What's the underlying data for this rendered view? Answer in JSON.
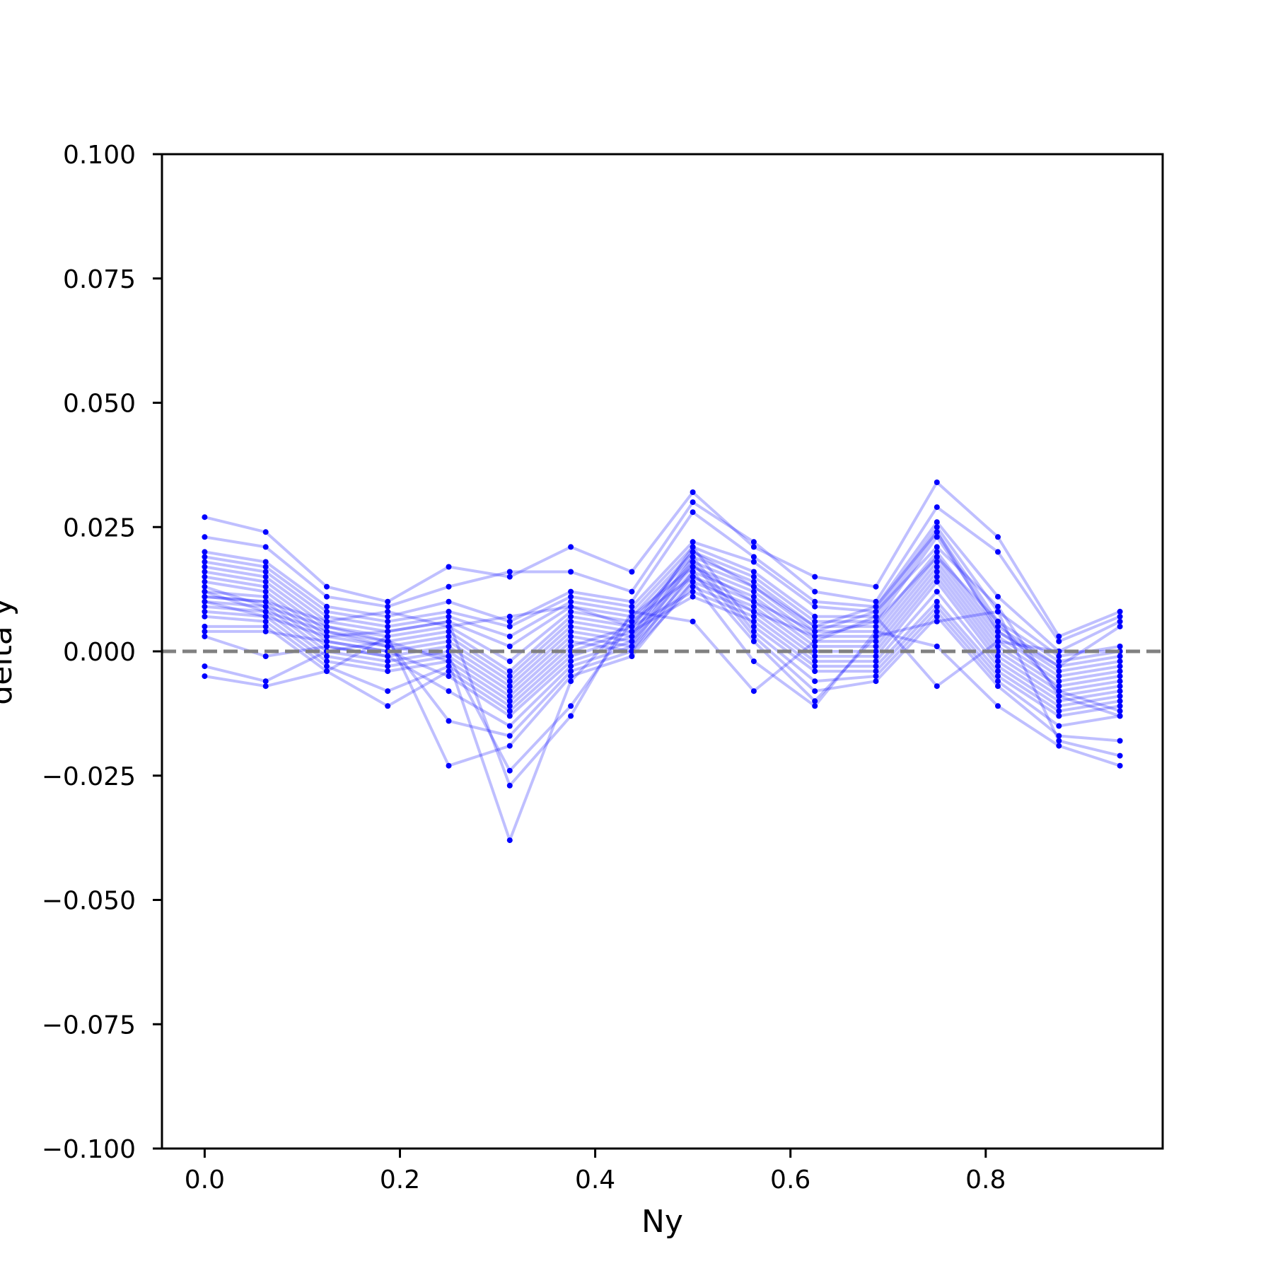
{
  "chart_data": {
    "type": "line",
    "title": "",
    "xlabel": "Ny",
    "ylabel": "delta y",
    "xlim": [
      -0.04375,
      0.98125
    ],
    "ylim": [
      -0.1,
      0.1
    ],
    "xticks": [
      0.0,
      0.2,
      0.4,
      0.6,
      0.8
    ],
    "xtick_labels": [
      "0.0",
      "0.2",
      "0.4",
      "0.6",
      "0.8"
    ],
    "yticks": [
      0.1,
      0.075,
      0.05,
      0.025,
      0.0,
      -0.025,
      -0.05,
      -0.075,
      -0.1
    ],
    "ytick_labels": [
      "0.100",
      "0.075",
      "0.050",
      "0.025",
      "0.000",
      "−0.025",
      "−0.050",
      "−0.075",
      "−0.100"
    ],
    "grid": false,
    "legend": null,
    "reference_line": {
      "y": 0.0,
      "style": "dashed",
      "color": "#808080"
    },
    "colors": {
      "series": "#0000ff",
      "line_alpha": 0.25
    },
    "x": [
      0.0,
      0.0625,
      0.125,
      0.1875,
      0.25,
      0.3125,
      0.375,
      0.4375,
      0.5,
      0.5625,
      0.625,
      0.6875,
      0.75,
      0.8125,
      0.875,
      0.9375
    ],
    "series": [
      {
        "values": [
          0.027,
          0.024,
          0.013,
          0.01,
          0.017,
          0.015,
          0.021,
          0.016,
          0.032,
          0.021,
          0.015,
          0.013,
          0.034,
          0.023,
          0.003,
          0.008
        ]
      },
      {
        "values": [
          0.023,
          0.021,
          0.011,
          0.009,
          0.013,
          0.016,
          0.016,
          0.012,
          0.03,
          0.022,
          0.012,
          0.01,
          0.029,
          0.02,
          0.002,
          0.007
        ]
      },
      {
        "values": [
          0.02,
          0.018,
          0.009,
          0.007,
          0.01,
          0.006,
          0.012,
          0.01,
          0.028,
          0.019,
          0.01,
          0.009,
          0.026,
          0.011,
          0.0,
          0.006
        ]
      },
      {
        "values": [
          0.019,
          0.017,
          0.008,
          0.006,
          0.008,
          0.005,
          0.011,
          0.009,
          0.022,
          0.018,
          0.009,
          0.008,
          0.025,
          0.008,
          -0.001,
          0.001
        ]
      },
      {
        "values": [
          0.018,
          0.016,
          0.007,
          0.005,
          0.007,
          0.003,
          0.01,
          0.008,
          0.021,
          0.016,
          0.007,
          0.007,
          0.024,
          0.006,
          -0.002,
          0.0
        ]
      },
      {
        "values": [
          0.017,
          0.015,
          0.006,
          0.004,
          0.006,
          0.001,
          0.009,
          0.007,
          0.02,
          0.015,
          0.006,
          0.006,
          0.023,
          0.005,
          -0.003,
          -0.001
        ]
      },
      {
        "values": [
          0.016,
          0.014,
          0.005,
          0.003,
          0.005,
          -0.002,
          0.008,
          0.006,
          0.019,
          0.014,
          0.005,
          0.005,
          0.02,
          0.004,
          -0.004,
          -0.002
        ]
      },
      {
        "values": [
          0.015,
          0.013,
          0.004,
          0.002,
          0.004,
          -0.004,
          0.007,
          0.005,
          0.018,
          0.013,
          0.004,
          0.004,
          0.019,
          0.003,
          -0.005,
          -0.003
        ]
      },
      {
        "values": [
          0.014,
          0.012,
          0.003,
          0.001,
          0.003,
          -0.005,
          0.006,
          0.004,
          0.017,
          0.012,
          0.003,
          0.003,
          0.018,
          0.002,
          -0.006,
          -0.004
        ]
      },
      {
        "values": [
          0.012,
          0.011,
          0.002,
          0.0,
          0.002,
          -0.006,
          0.005,
          0.003,
          0.016,
          0.011,
          0.002,
          0.002,
          0.017,
          0.001,
          -0.007,
          -0.005
        ]
      },
      {
        "values": [
          0.011,
          0.01,
          0.001,
          -0.001,
          0.001,
          -0.007,
          0.004,
          0.002,
          0.015,
          0.01,
          0.001,
          0.001,
          0.016,
          0.0,
          -0.008,
          -0.006
        ]
      },
      {
        "values": [
          0.01,
          0.009,
          0.0,
          -0.002,
          0.0,
          -0.008,
          0.003,
          0.001,
          0.014,
          0.009,
          0.0,
          0.0,
          0.015,
          -0.001,
          -0.009,
          -0.007
        ]
      },
      {
        "values": [
          0.009,
          0.008,
          -0.001,
          -0.003,
          -0.001,
          -0.009,
          0.002,
          0.0,
          0.013,
          0.008,
          -0.001,
          -0.001,
          0.014,
          -0.002,
          -0.01,
          -0.008
        ]
      },
      {
        "values": [
          0.008,
          0.007,
          -0.002,
          -0.004,
          -0.002,
          -0.01,
          0.001,
          0.005,
          0.012,
          0.007,
          -0.002,
          -0.002,
          0.012,
          -0.003,
          -0.011,
          -0.009
        ]
      },
      {
        "values": [
          0.007,
          0.006,
          -0.003,
          -0.008,
          -0.003,
          -0.011,
          0.0,
          0.004,
          0.011,
          0.006,
          -0.003,
          -0.003,
          0.01,
          -0.004,
          -0.012,
          -0.01
        ]
      },
      {
        "values": [
          0.005,
          0.005,
          -0.004,
          -0.011,
          -0.004,
          -0.012,
          -0.001,
          0.003,
          0.021,
          0.005,
          -0.004,
          -0.004,
          0.009,
          -0.005,
          -0.013,
          -0.011
        ]
      },
      {
        "values": [
          0.004,
          0.004,
          0.002,
          0.0,
          -0.005,
          -0.013,
          -0.002,
          0.002,
          0.019,
          0.004,
          -0.006,
          -0.005,
          0.008,
          -0.006,
          -0.015,
          -0.013
        ]
      },
      {
        "values": [
          0.003,
          -0.001,
          0.001,
          -0.001,
          -0.008,
          -0.015,
          -0.003,
          0.001,
          0.018,
          0.003,
          -0.008,
          -0.006,
          0.007,
          -0.007,
          -0.017,
          -0.018
        ]
      },
      {
        "values": [
          -0.003,
          -0.006,
          0.0,
          0.002,
          -0.014,
          -0.017,
          -0.004,
          0.0,
          0.016,
          0.002,
          -0.01,
          0.003,
          0.006,
          0.008,
          -0.018,
          -0.021
        ]
      },
      {
        "values": [
          -0.005,
          -0.007,
          -0.004,
          0.003,
          -0.023,
          -0.019,
          -0.005,
          -0.001,
          0.014,
          -0.002,
          -0.011,
          0.004,
          0.001,
          -0.011,
          -0.019,
          -0.023
        ]
      },
      {
        "values": [
          0.012,
          0.008,
          0.004,
          0.001,
          -0.001,
          -0.024,
          -0.011,
          0.006,
          0.015,
          0.008,
          0.003,
          0.006,
          0.019,
          0.006,
          -0.008,
          -0.012
        ]
      },
      {
        "values": [
          0.01,
          0.007,
          0.003,
          0.004,
          0.006,
          -0.027,
          -0.013,
          0.008,
          0.006,
          -0.008,
          0.002,
          0.007,
          -0.007,
          0.002,
          0.0,
          0.0
        ]
      },
      {
        "values": [
          0.013,
          0.009,
          0.005,
          0.002,
          -0.002,
          -0.038,
          -0.006,
          0.007,
          0.017,
          0.01,
          0.004,
          0.008,
          0.021,
          0.009,
          -0.009,
          -0.013
        ]
      },
      {
        "values": [
          0.011,
          0.01,
          0.006,
          0.008,
          0.005,
          0.007,
          0.009,
          0.005,
          0.02,
          0.013,
          0.005,
          0.009,
          0.024,
          0.004,
          -0.003,
          0.005
        ]
      }
    ]
  }
}
